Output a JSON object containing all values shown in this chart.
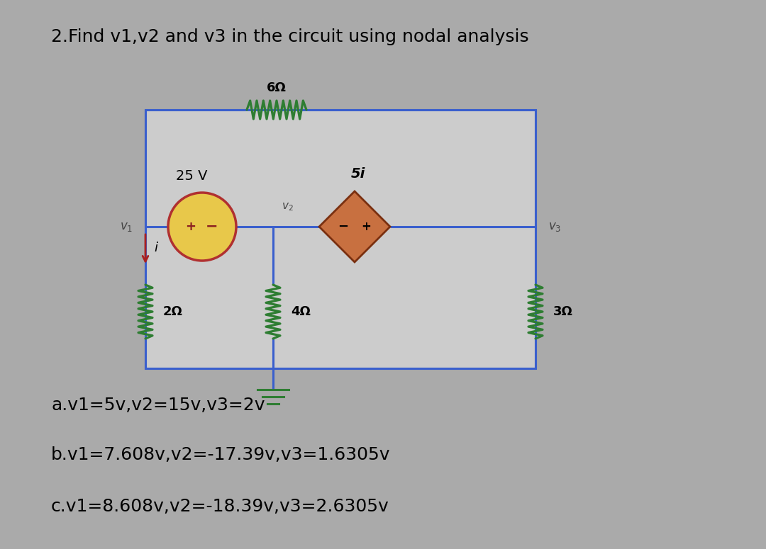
{
  "title": "2.Find v1,v2 and v3 in the circuit using nodal analysis",
  "bg_color": "#aaaaaa",
  "circuit_bg": "#c0c0c0",
  "answer_a": "a.v1=5v,v2=15v,v3=2v",
  "answer_b": "b.v1=7.608v,v2=-17.39v,v3=1.6305v",
  "answer_c": "c.v1=8.608v,v2=-18.39v,v3=2.6305v",
  "resistor_color": "#2e7d32",
  "wire_color": "#3a5fcd",
  "source_circle_fill": "#e8c84a",
  "source_circle_edge": "#b03030",
  "source_symbol_color": "#8b2020",
  "dependent_source_fill": "#c87040",
  "dependent_source_edge": "#7a3010",
  "node_label_color": "#444444",
  "arrow_color": "#aa2020",
  "ground_color": "#2e7d32",
  "title_fontsize": 18,
  "answer_fontsize": 18
}
